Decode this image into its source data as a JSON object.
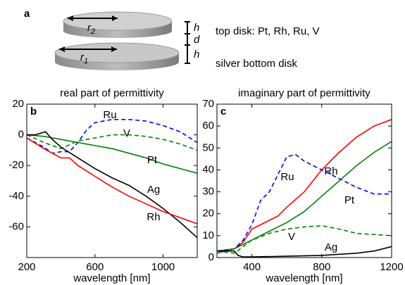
{
  "diagram": {
    "label": "a",
    "r_top": {
      "symbol": "r",
      "subscript": "2"
    },
    "r_bottom": {
      "symbol": "r",
      "subscript": "1"
    },
    "h_top": "h",
    "d": "d",
    "h_bottom": "h",
    "top_disk": "top disk: Pt, Rh, Ru, V",
    "bottom_disk": "silver bottom disk"
  },
  "chart_data": [
    {
      "type": "line",
      "panel": "b",
      "title": "real part of permittivity",
      "x_label": "wavelength [nm]",
      "xlim": [
        200,
        1200
      ],
      "xticks": [
        200,
        600,
        1000
      ],
      "ylim": [
        -80,
        20
      ],
      "yticks": [
        -60,
        -40,
        -20,
        0,
        20
      ],
      "series": [
        {
          "name": "Ru",
          "color": "#0000ff",
          "dashed": true,
          "x": [
            200,
            300,
            350,
            400,
            450,
            500,
            550,
            600,
            700,
            800,
            900,
            1000,
            1100,
            1200
          ],
          "values": [
            -2,
            -8,
            -12,
            -11,
            -11,
            -5,
            3,
            8,
            10,
            10,
            9,
            6,
            2,
            -5
          ]
        },
        {
          "name": "V",
          "color": "#008000",
          "dashed": true,
          "x": [
            200,
            300,
            400,
            500,
            600,
            700,
            800,
            900,
            1000,
            1100,
            1200
          ],
          "values": [
            0,
            -5,
            -9,
            -4,
            -2,
            0,
            0,
            -1,
            -3,
            -6,
            -10
          ]
        },
        {
          "name": "Pt",
          "color": "#008000",
          "dashed": false,
          "x": [
            200,
            300,
            400,
            500,
            600,
            700,
            800,
            900,
            1000,
            1100,
            1200
          ],
          "values": [
            0,
            -1,
            -3,
            -5,
            -7,
            -9,
            -12,
            -15,
            -19,
            -22,
            -25
          ]
        },
        {
          "name": "Ag",
          "color": "#000000",
          "dashed": false,
          "x": [
            200,
            250,
            310,
            350,
            400,
            500,
            600,
            700,
            800,
            900,
            1000,
            1100,
            1200
          ],
          "values": [
            0,
            0,
            2,
            -3,
            -8,
            -15,
            -22,
            -28,
            -33,
            -40,
            -48,
            -57,
            -67
          ]
        },
        {
          "name": "Rh",
          "color": "#ff0000",
          "dashed": false,
          "x": [
            200,
            300,
            400,
            450,
            500,
            600,
            700,
            800,
            900,
            1000,
            1100,
            1200
          ],
          "values": [
            -2,
            -9,
            -15,
            -15,
            -20,
            -27,
            -34,
            -40,
            -45,
            -50,
            -54,
            -58
          ]
        }
      ]
    },
    {
      "type": "line",
      "panel": "c",
      "title": "imaginary part of permittivity",
      "x_label": "wavelength [nm]",
      "xlim": [
        200,
        1200
      ],
      "xticks": [
        400,
        800,
        1200
      ],
      "ylim": [
        0,
        70
      ],
      "yticks": [
        0,
        10,
        20,
        30,
        40,
        50,
        60,
        70
      ],
      "series": [
        {
          "name": "Rh",
          "color": "#ff0000",
          "dashed": false,
          "x": [
            200,
            300,
            350,
            400,
            500,
            550,
            600,
            700,
            800,
            900,
            1000,
            1100,
            1200
          ],
          "values": [
            3,
            4,
            7,
            13,
            17,
            19,
            23,
            30,
            40,
            48,
            55,
            60,
            63
          ]
        },
        {
          "name": "Ru",
          "color": "#0000ff",
          "dashed": true,
          "x": [
            200,
            300,
            350,
            400,
            450,
            500,
            550,
            600,
            650,
            700,
            800,
            900,
            1000,
            1100,
            1200
          ],
          "values": [
            3,
            4,
            8,
            15,
            26,
            30,
            38,
            46,
            47,
            44,
            40,
            36,
            32,
            29,
            29
          ]
        },
        {
          "name": "Pt",
          "color": "#008000",
          "dashed": false,
          "x": [
            200,
            300,
            400,
            500,
            600,
            700,
            800,
            900,
            1000,
            1100,
            1200
          ],
          "values": [
            2,
            4,
            8,
            12,
            16,
            21,
            28,
            35,
            42,
            48,
            53
          ]
        },
        {
          "name": "V",
          "color": "#008000",
          "dashed": true,
          "x": [
            200,
            300,
            350,
            400,
            500,
            600,
            700,
            800,
            900,
            1000,
            1100,
            1200
          ],
          "values": [
            3,
            2,
            5,
            8,
            11,
            13,
            14,
            14.5,
            13,
            11,
            10.5,
            10
          ]
        },
        {
          "name": "Ag",
          "color": "#000000",
          "dashed": false,
          "x": [
            200,
            300,
            320,
            350,
            400,
            600,
            800,
            1000,
            1100,
            1200
          ],
          "values": [
            3,
            3,
            1,
            0.3,
            0.3,
            0.6,
            1,
            2,
            3,
            5
          ]
        }
      ]
    }
  ]
}
